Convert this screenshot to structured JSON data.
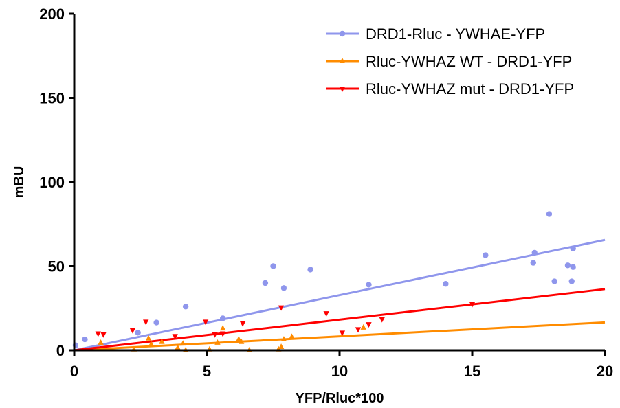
{
  "chart_data": {
    "type": "scatter",
    "xlabel": "YFP/Rluc*100",
    "ylabel": "mBU",
    "xlim": [
      0,
      20
    ],
    "ylim": [
      0,
      200
    ],
    "x_ticks": [
      "0",
      "5",
      "10",
      "15",
      "20"
    ],
    "y_ticks": [
      "0",
      "50",
      "100",
      "150",
      "200"
    ],
    "grid": false,
    "legend_position": "top-right",
    "series": [
      {
        "name": "DRD1-Rluc - YWHAE-YFP",
        "color": "#8f96ec",
        "marker": "circle",
        "fit": {
          "slope": 3.28,
          "intercept": 0
        },
        "points": [
          [
            0.05,
            3
          ],
          [
            0.4,
            6.5
          ],
          [
            2.4,
            10.5
          ],
          [
            3.1,
            16.5
          ],
          [
            4.2,
            26
          ],
          [
            5.6,
            19
          ],
          [
            7.2,
            40
          ],
          [
            7.5,
            50
          ],
          [
            7.9,
            37
          ],
          [
            8.9,
            48
          ],
          [
            11.1,
            39
          ],
          [
            14.0,
            39.5
          ],
          [
            15.5,
            56.5
          ],
          [
            17.3,
            52
          ],
          [
            17.35,
            58
          ],
          [
            17.9,
            81
          ],
          [
            18.1,
            41
          ],
          [
            18.6,
            50.5
          ],
          [
            18.75,
            41
          ],
          [
            18.8,
            60.5
          ],
          [
            18.8,
            49.5
          ]
        ]
      },
      {
        "name": "Rluc-YWHAZ WT - DRD1-YFP",
        "color": "#ff8c00",
        "marker": "triangle-up",
        "fit": {
          "slope": 0.83,
          "intercept": 0
        },
        "points": [
          [
            1.0,
            4.5
          ],
          [
            2.25,
            0.5
          ],
          [
            2.8,
            7
          ],
          [
            2.9,
            3.5
          ],
          [
            3.3,
            5
          ],
          [
            3.9,
            1.5
          ],
          [
            4.1,
            4
          ],
          [
            4.2,
            0
          ],
          [
            5.1,
            0.5
          ],
          [
            5.4,
            4.5
          ],
          [
            5.6,
            13
          ],
          [
            6.2,
            6.5
          ],
          [
            6.3,
            5
          ],
          [
            6.6,
            0
          ],
          [
            7.7,
            0.5
          ],
          [
            7.8,
            2
          ],
          [
            7.9,
            6.5
          ],
          [
            8.2,
            8
          ],
          [
            10.9,
            13.5
          ]
        ]
      },
      {
        "name": "Rluc-YWHAZ mut - DRD1-YFP",
        "color": "#ff0000",
        "marker": "triangle-down",
        "fit": {
          "slope": 1.82,
          "intercept": 0
        },
        "points": [
          [
            0.9,
            10
          ],
          [
            1.1,
            9.5
          ],
          [
            2.2,
            12
          ],
          [
            2.7,
            17
          ],
          [
            3.8,
            8.5
          ],
          [
            4.95,
            17
          ],
          [
            5.3,
            9.5
          ],
          [
            5.6,
            10
          ],
          [
            6.35,
            16
          ],
          [
            7.8,
            25.5
          ],
          [
            9.5,
            22
          ],
          [
            10.1,
            10.5
          ],
          [
            10.7,
            12.5
          ],
          [
            11.1,
            15.5
          ],
          [
            11.6,
            18.5
          ],
          [
            15.0,
            27.5
          ]
        ]
      }
    ]
  }
}
